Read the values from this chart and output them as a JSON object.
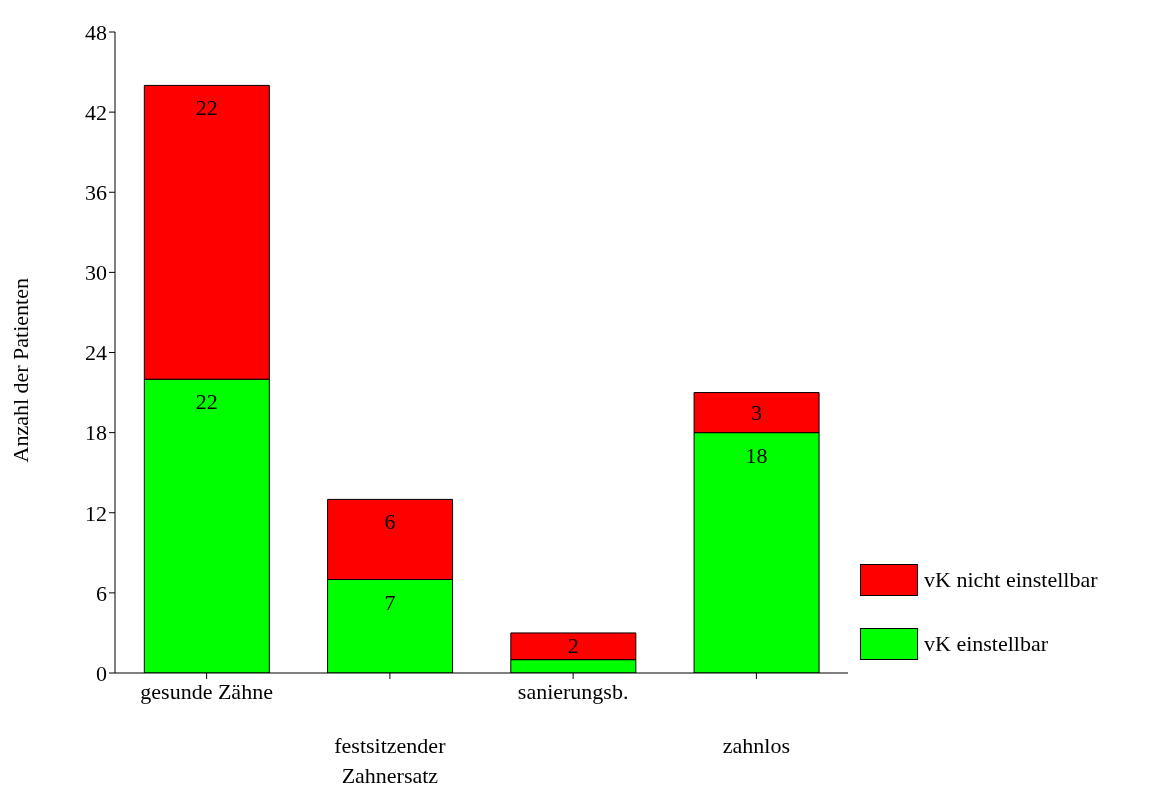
{
  "chart_data": {
    "type": "bar",
    "stacked": true,
    "ylabel": "Anzahl der Patienten",
    "categories": [
      "gesunde Zähne",
      "festsitzender\nZahnersatz",
      "sanierungsb.",
      "zahnlos"
    ],
    "series": [
      {
        "name": "vK einstellbar",
        "color": "#00ff00",
        "values": [
          22,
          7,
          1,
          18
        ],
        "value_labels": [
          "22",
          "7",
          null,
          "18"
        ]
      },
      {
        "name": "vK nicht einstellbar",
        "color": "#ff0000",
        "values": [
          22,
          6,
          2,
          3
        ],
        "value_labels": [
          "22",
          "6",
          "2",
          "3"
        ]
      }
    ],
    "ylim": [
      0,
      48
    ],
    "yticks": [
      0,
      6,
      12,
      18,
      24,
      30,
      36,
      42,
      48
    ],
    "grid": false,
    "legend": "right"
  }
}
